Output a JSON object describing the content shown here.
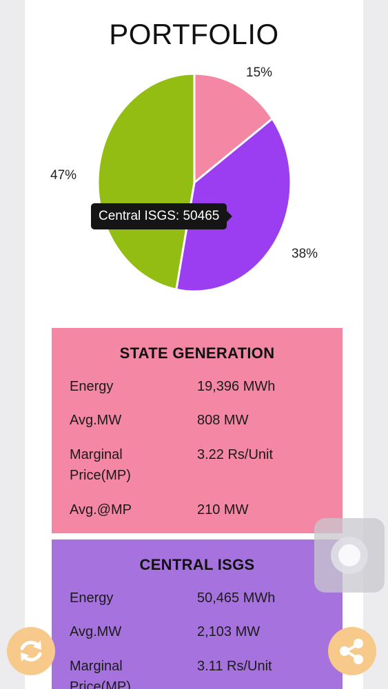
{
  "title": "PORTFOLIO",
  "pie": {
    "labels": [
      "15%",
      "38%",
      "47%"
    ],
    "tooltip": "Central ISGS: 50465"
  },
  "chart_data": {
    "type": "pie",
    "slices": [
      {
        "name": "State Generation",
        "percent": 15,
        "color": "#f487a4"
      },
      {
        "name": "Central ISGS",
        "percent": 38,
        "value": 50465,
        "color": "#9b3ef1"
      },
      {
        "name": "",
        "percent": 47,
        "color": "#93bd12"
      }
    ]
  },
  "state_generation": {
    "heading": "STATE GENERATION",
    "bg": "#f487a4",
    "rows": [
      {
        "label": "Energy",
        "value": "19,396 MWh"
      },
      {
        "label": "Avg.MW",
        "value": "808 MW"
      },
      {
        "label_line1": "Marginal",
        "label_line2": "Price(MP)",
        "value": "3.22 Rs/Unit"
      },
      {
        "label": "Avg.@MP",
        "value": "210 MW"
      }
    ]
  },
  "central_isgs": {
    "heading": "CENTRAL ISGS",
    "bg": "#a673de",
    "rows": [
      {
        "label": "Energy",
        "value": "50,465 MWh"
      },
      {
        "label": "Avg.MW",
        "value": "2,103 MW"
      },
      {
        "label_line1": "Marginal",
        "label_line2": "Price(MP)",
        "value": "3.11 Rs/Unit"
      }
    ]
  },
  "icons": {
    "refresh": "refresh-icon",
    "share": "share-icon"
  }
}
